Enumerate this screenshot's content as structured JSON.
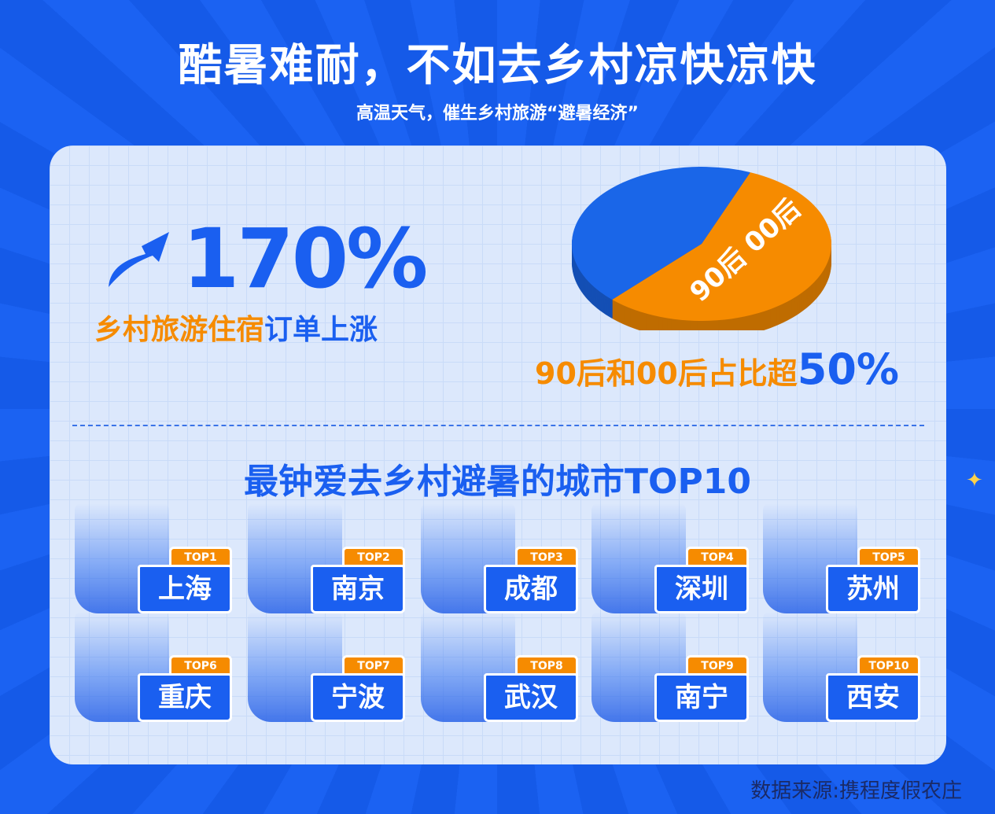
{
  "title": "酷暑难耐，不如去乡村凉快凉快",
  "subtitle": "高温天气，催生乡村旅游“避暑经济”",
  "stat1": {
    "value": "170%",
    "label_orange": "乡村旅游住宿",
    "label_blue": "订单上涨"
  },
  "stat2": {
    "label": "90后和00后占比超",
    "value": "50%"
  },
  "chart_data": {
    "type": "pie",
    "slices": [
      {
        "label": "90后 00后",
        "value": 56,
        "color": "#f68b00"
      },
      {
        "label": "",
        "value": 44,
        "color": "#1a66e8"
      }
    ]
  },
  "ranking": {
    "heading": "最钟爱去乡村避暑的城市TOP10",
    "cities": [
      {
        "rank": "TOP1",
        "name": "上海",
        "icon": "shanghai-skyline-icon"
      },
      {
        "rank": "TOP2",
        "name": "南京",
        "icon": "nanjing-pagoda-icon"
      },
      {
        "rank": "TOP3",
        "name": "成都",
        "icon": "chengdu-panda-icon"
      },
      {
        "rank": "TOP4",
        "name": "深圳",
        "icon": "shenzhen-skyline-icon"
      },
      {
        "rank": "TOP5",
        "name": "苏州",
        "icon": "suzhou-building-icon"
      },
      {
        "rank": "TOP6",
        "name": "重庆",
        "icon": "chongqing-building-icon"
      },
      {
        "rank": "TOP7",
        "name": "宁波",
        "icon": "ningbo-pagoda-icon"
      },
      {
        "rank": "TOP8",
        "name": "武汉",
        "icon": "wuhan-tower-icon"
      },
      {
        "rank": "TOP9",
        "name": "南宁",
        "icon": "nanning-building-icon"
      },
      {
        "rank": "TOP10",
        "name": "西安",
        "icon": "xian-tower-icon"
      }
    ]
  },
  "source": "数据来源:携程度假农庄",
  "colors": {
    "brand_blue": "#1a5ff0",
    "accent_orange": "#f68b00"
  }
}
